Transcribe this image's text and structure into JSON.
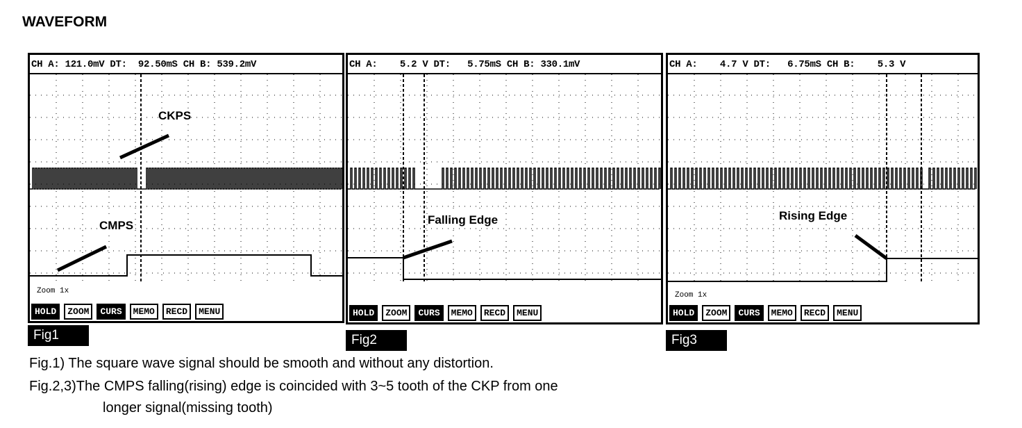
{
  "title": "WAVEFORM",
  "buttons": [
    "HOLD",
    "ZOOM",
    "CURS",
    "MEMO",
    "RECD",
    "MENU"
  ],
  "panels": [
    {
      "header": "CH A: 121.0mV DT:  92.50mS CH B: 539.2mV",
      "fig": "Fig1",
      "zoom": "Zoom 1x",
      "labels": [
        "CKPS",
        "CMPS"
      ]
    },
    {
      "header": "CH A:    5.2 V DT:   5.75mS CH B: 330.1mV",
      "fig": "Fig2",
      "zoom": "",
      "labels": [
        "Falling Edge"
      ]
    },
    {
      "header": "CH A:    4.7 V DT:   6.75mS CH B:    5.3 V",
      "fig": "Fig3",
      "zoom": "Zoom 1x",
      "labels": [
        "Rising Edge"
      ]
    }
  ],
  "captions": [
    "Fig.1) The square wave signal should be smooth and without any distortion.",
    "Fig.2,3)The CMPS falling(rising) edge is coincided with 3~5 tooth of the CKP from one",
    "longer signal(missing tooth)"
  ]
}
